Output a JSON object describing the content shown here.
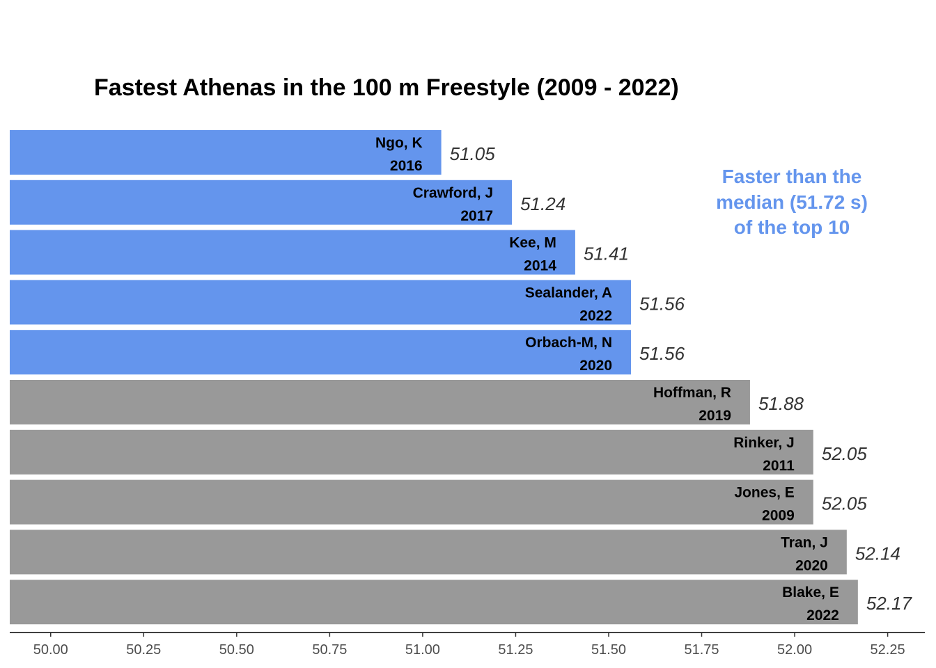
{
  "chart_data": {
    "type": "bar",
    "orientation": "horizontal",
    "title": "Fastest Athenas in the 100 m Freestyle (2009 - 2022)",
    "xlabel": "",
    "ylabel": "",
    "xlim": [
      49.89,
      52.35
    ],
    "grid": false,
    "colors": {
      "faster": "#6495ed",
      "slower": "#999999",
      "annotation": "#6495ed"
    },
    "bars": [
      {
        "name": "Ngo, K",
        "year": "2016",
        "value": 51.05,
        "value_label": "51.05",
        "faster": true
      },
      {
        "name": "Crawford, J",
        "year": "2017",
        "value": 51.24,
        "value_label": "51.24",
        "faster": true
      },
      {
        "name": "Kee, M",
        "year": "2014",
        "value": 51.41,
        "value_label": "51.41",
        "faster": true
      },
      {
        "name": "Sealander, A",
        "year": "2022",
        "value": 51.56,
        "value_label": "51.56",
        "faster": true
      },
      {
        "name": "Orbach-M, N",
        "year": "2020",
        "value": 51.56,
        "value_label": "51.56",
        "faster": true
      },
      {
        "name": "Hoffman, R",
        "year": "2019",
        "value": 51.88,
        "value_label": "51.88",
        "faster": false
      },
      {
        "name": "Rinker, J",
        "year": "2011",
        "value": 52.05,
        "value_label": "52.05",
        "faster": false
      },
      {
        "name": "Jones, E",
        "year": "2009",
        "value": 52.05,
        "value_label": "52.05",
        "faster": false
      },
      {
        "name": "Tran, J",
        "year": "2020",
        "value": 52.14,
        "value_label": "52.14",
        "faster": false
      },
      {
        "name": "Blake, E",
        "year": "2022",
        "value": 52.17,
        "value_label": "52.17",
        "faster": false
      }
    ],
    "x_ticks": [
      {
        "value": 50.0,
        "label": "50.00"
      },
      {
        "value": 50.25,
        "label": "50.25"
      },
      {
        "value": 50.5,
        "label": "50.50"
      },
      {
        "value": 50.75,
        "label": "50.75"
      },
      {
        "value": 51.0,
        "label": "51.00"
      },
      {
        "value": 51.25,
        "label": "51.25"
      },
      {
        "value": 51.5,
        "label": "51.50"
      },
      {
        "value": 51.75,
        "label": "51.75"
      },
      {
        "value": 52.0,
        "label": "52.00"
      },
      {
        "value": 52.25,
        "label": "52.25"
      }
    ],
    "annotation": {
      "lines": [
        "Faster than the",
        "median (51.72 s)",
        "of the top 10"
      ]
    }
  }
}
